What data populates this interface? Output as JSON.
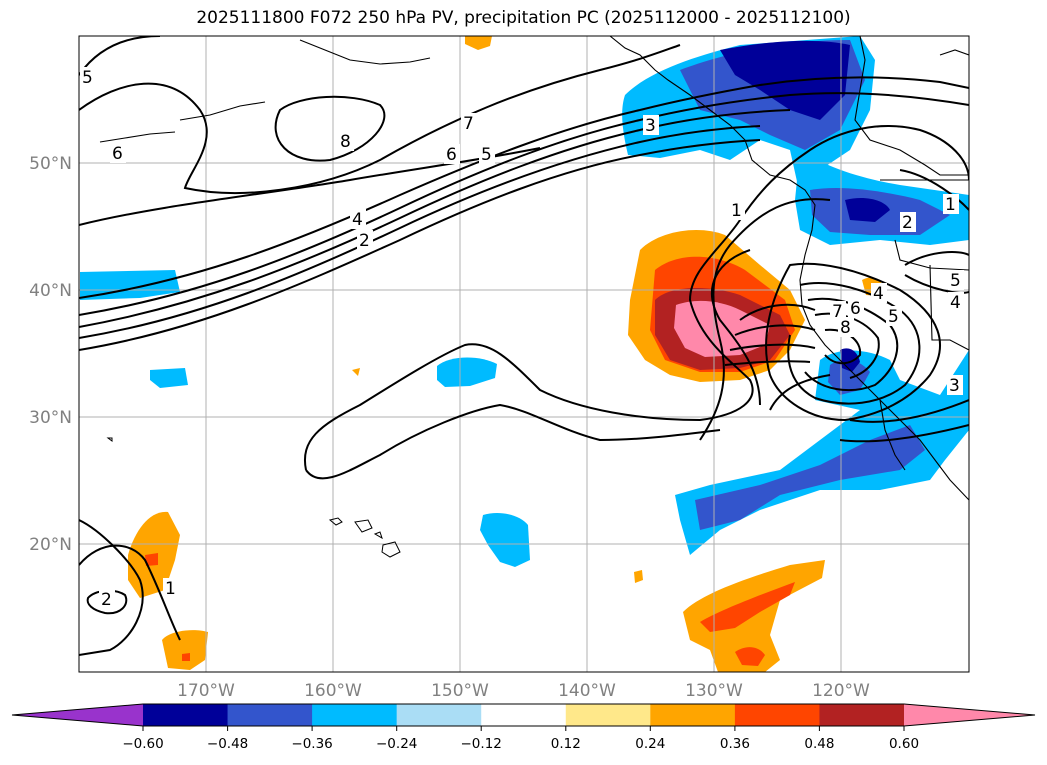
{
  "title": "2025111800 F072 250 hPa PV, precipitation PC (2025112000 - 2025112100)",
  "axes": {
    "lat_labels": [
      "50°N",
      "40°N",
      "30°N",
      "20°N"
    ],
    "lon_labels": [
      "170°W",
      "160°W",
      "150°W",
      "140°W",
      "130°W",
      "120°W"
    ]
  },
  "contour_labels": [
    "5",
    "6",
    "8",
    "7",
    "6",
    "5",
    "3",
    "4",
    "2",
    "1",
    "1",
    "2",
    "5",
    "4",
    "5",
    "4",
    "6",
    "7",
    "8",
    "3",
    "2",
    "1"
  ],
  "colorbar": {
    "tick_labels": [
      "−0.60",
      "−0.48",
      "−0.36",
      "−0.24",
      "−0.12",
      "0.12",
      "0.24",
      "0.36",
      "0.48",
      "0.60"
    ],
    "colors": [
      "#9933cc",
      "#000099",
      "#3355cc",
      "#00bbff",
      "#aaddf5",
      "#ffffff",
      "#ffe88a",
      "#ffa500",
      "#ff4500",
      "#b22222",
      "#ff88aa"
    ],
    "extend": "both"
  },
  "map_style": {
    "grid": true,
    "coastlines": "black",
    "contour_color": "#000000"
  }
}
